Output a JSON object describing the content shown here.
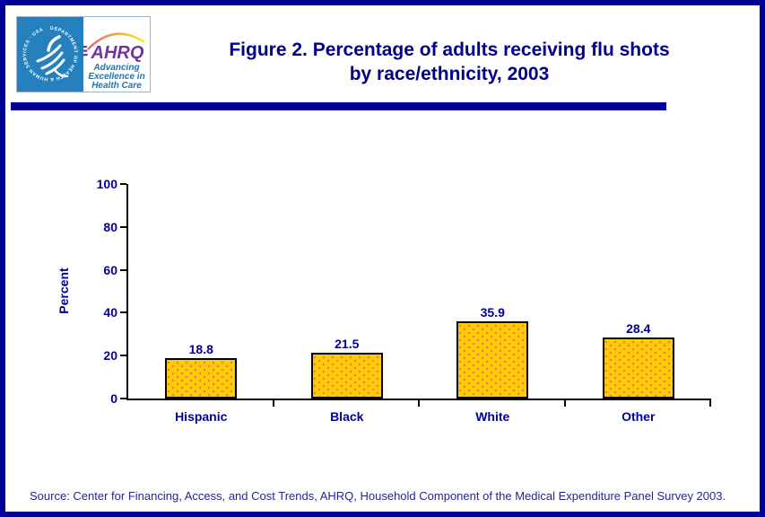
{
  "page": {
    "background": "#FFFFFF",
    "border_color": "#000099",
    "accent_navy": "#000099"
  },
  "header": {
    "title_line1": "Figure 2. Percentage of adults receiving flu shots",
    "title_line2": "by race/ethnicity, 2003",
    "title_color": "#00008B",
    "logo": {
      "hhs_circular_text": "DEPARTMENT OF HEALTH & HUMAN SERVICES · USA",
      "hhs_blue": "#2580BE",
      "ahrq_acronym": "AHRQ",
      "ahrq_purple": "#72369B",
      "tagline_line1": "Advancing",
      "tagline_line2": "Excellence in",
      "tagline_line3": "Health Care",
      "tagline_blue": "#1B75BB"
    }
  },
  "chart_data": {
    "type": "bar",
    "categories": [
      "Hispanic",
      "Black",
      "White",
      "Other"
    ],
    "values": [
      18.8,
      21.5,
      35.9,
      28.4
    ],
    "title": "Percentage of adults receiving flu shots by race/ethnicity, 2003",
    "xlabel": "",
    "ylabel": "Percent",
    "ylim": [
      0,
      100
    ],
    "yticks": [
      0,
      20,
      40,
      60,
      80,
      100
    ],
    "grid": false,
    "legend": false,
    "bar_fill_color": "#FFCB05",
    "bar_dot_color": "#EE7350",
    "bar_border_color": "#000000",
    "axis_color": "#000000",
    "label_color": "#000099"
  },
  "footer": {
    "source": "Source: Center for Financing, Access, and Cost Trends, AHRQ, Household Component of the Medical Expenditure Panel Survey 2003."
  }
}
